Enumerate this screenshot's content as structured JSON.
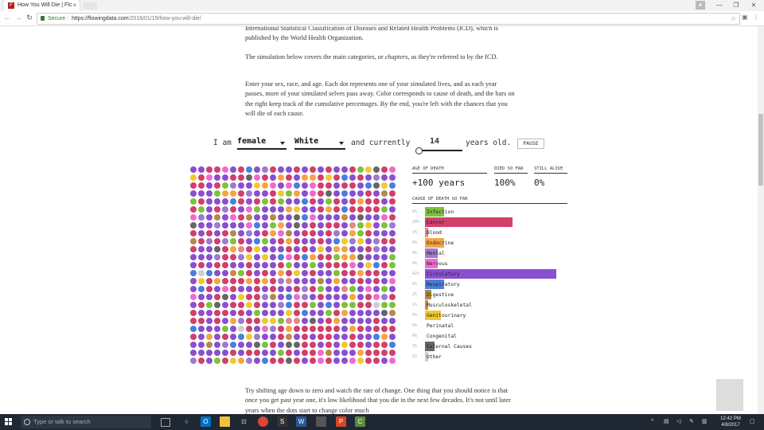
{
  "browser": {
    "tab_title": "How You Will Die | Flow",
    "tab_close": "×",
    "favicon_letter": "F",
    "window_controls": [
      "—",
      "❐",
      "✕"
    ],
    "nav_back": "←",
    "nav_forward": "→",
    "nav_reload": "↻",
    "secure_label": "Secure",
    "separator": "|",
    "url_host": "https://flowingdata.com",
    "url_path": "/2016/01/19/how-you-will-die/",
    "bookmark_icon": "☆"
  },
  "article": {
    "para1": "International Statistical Classification of Diseases and Related Health Problems (ICD), which is published by the World Health Organization.",
    "para2": "The simulation below covers the main categories, or chapters, as they're referred to by the ICD.",
    "para3": "Enter your sex, race, and age. Each dot represents one of your simulated lives, and as each year passes, more of your simulated selves pass away. Color corresponds to cause of death, and the bars on the right keep track of the cumulative percentages. By the end, you're left with the chances that you will die of each cause.",
    "para4": "Try shifting age down to zero and watch the rate of change. One thing that you should notice is that once you get past year one, it's low likelihood that you die in the next few decades. It's not until later years when the dots start to change color much"
  },
  "controls": {
    "i_am": "I am",
    "sex_value": "female",
    "race_value": "White",
    "and_currently": "and currently",
    "age_value": "14",
    "years_old": "years old.",
    "pause_label": "PAUSE"
  },
  "stats": {
    "age_of_death_label": "AGE OF DEATH",
    "age_of_death_value": "+100 years",
    "died_so_far_label": "DIED SO FAR",
    "died_so_far_value": "100%",
    "still_alive_label": "STILL ALIVE",
    "still_alive_value": "0%",
    "cause_header": "CAUSE OF DEATH SO FAR"
  },
  "causes": [
    {
      "pct": "6%",
      "label": "Infection",
      "value": 6,
      "color": "#7cc33a"
    },
    {
      "pct": "28%",
      "label": "Cancer",
      "value": 28,
      "color": "#d23f6b"
    },
    {
      "pct": "1%",
      "label": "Blood",
      "value": 1,
      "color": "#e08a8a"
    },
    {
      "pct": "6%",
      "label": "Endocrine",
      "value": 6,
      "color": "#f5a541"
    },
    {
      "pct": "4%",
      "label": "Mental",
      "value": 4,
      "color": "#9c7bd0"
    },
    {
      "pct": "4%",
      "label": "Nervous",
      "value": 4,
      "color": "#f06bd0"
    },
    {
      "pct": "42%",
      "label": "Circulatory",
      "value": 42,
      "color": "#8a4fd1"
    },
    {
      "pct": "6%",
      "label": "Respiratory",
      "value": 6,
      "color": "#4a7ee0"
    },
    {
      "pct": "2%",
      "label": "Digestive",
      "value": 2,
      "color": "#b08b4a"
    },
    {
      "pct": "1%",
      "label": "Musculoskeletal",
      "value": 1,
      "color": "#d0884a"
    },
    {
      "pct": "5%",
      "label": "Genitourinary",
      "value": 5,
      "color": "#f0c930"
    },
    {
      "pct": "0%",
      "label": "Perinatal",
      "value": 0,
      "color": "#cccccc"
    },
    {
      "pct": "0%",
      "label": "Congenital",
      "value": 0,
      "color": "#aaaaaa"
    },
    {
      "pct": "3%",
      "label": "External Causes",
      "value": 3,
      "color": "#666666"
    },
    {
      "pct": "1%",
      "label": "Other",
      "value": 1,
      "color": "#cfcfcf"
    }
  ],
  "taskbar": {
    "search_placeholder": "Type or talk to search",
    "time": "12:42 PM",
    "date": "4/8/2017"
  }
}
